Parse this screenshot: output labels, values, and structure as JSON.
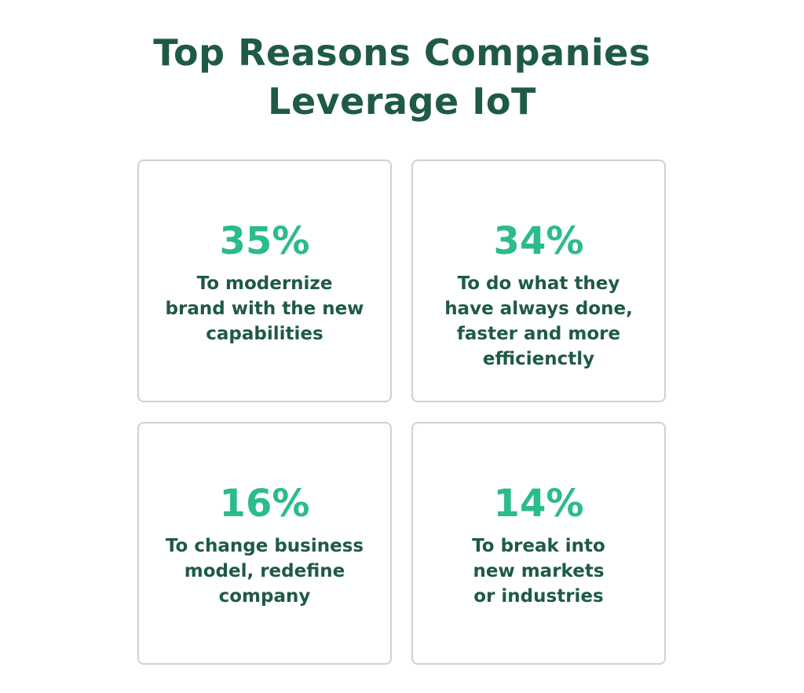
{
  "title": {
    "lines": [
      "Top Reasons Companies",
      "Leverage IoT"
    ]
  },
  "cards": [
    {
      "value": "35%",
      "lines": [
        "To modernize",
        "brand with the new",
        "capabilities"
      ]
    },
    {
      "value": "34%",
      "lines": [
        "To do what they",
        "have always done,",
        "faster and more",
        "efficienctly"
      ]
    },
    {
      "value": "16%",
      "lines": [
        "To change business",
        "model, redefine",
        "company"
      ]
    },
    {
      "value": "14%",
      "lines": [
        "To break into",
        "new markets",
        "or industries"
      ]
    }
  ]
}
